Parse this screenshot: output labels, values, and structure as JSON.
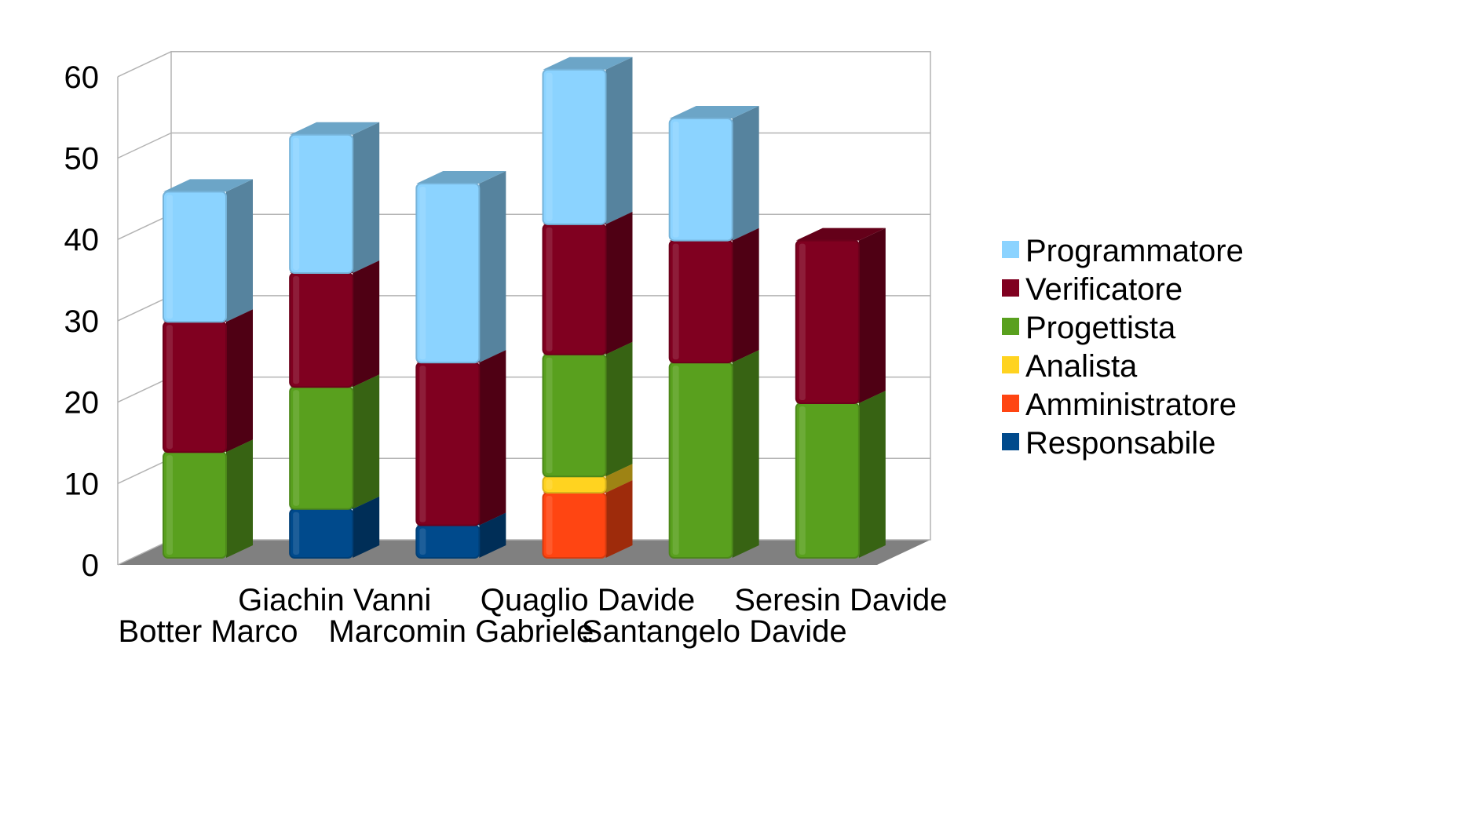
{
  "chart_data": {
    "type": "bar",
    "stacked": true,
    "three_d": true,
    "categories": [
      "Botter Marco",
      "Giachin Vanni",
      "Marcomin Gabriele",
      "Quaglio Davide",
      "Santangelo Davide",
      "Seresin Davide"
    ],
    "series": [
      {
        "name": "Responsabile",
        "color": "#004A8C",
        "values": [
          0,
          6,
          4,
          0,
          0,
          0
        ]
      },
      {
        "name": "Amministratore",
        "color": "#FF4512",
        "values": [
          0,
          0,
          0,
          8,
          0,
          0
        ]
      },
      {
        "name": "Analista",
        "color": "#FFD320",
        "values": [
          0,
          0,
          0,
          2,
          0,
          0
        ]
      },
      {
        "name": "Progettista",
        "color": "#59A01E",
        "values": [
          13,
          15,
          0,
          15,
          24,
          19
        ]
      },
      {
        "name": "Verificatore",
        "color": "#800020",
        "values": [
          16,
          14,
          20,
          16,
          15,
          20
        ]
      },
      {
        "name": "Programmatore",
        "color": "#8BD3FF",
        "values": [
          16,
          17,
          22,
          19,
          15,
          0
        ]
      }
    ],
    "legend_order": [
      "Programmatore",
      "Verificatore",
      "Progettista",
      "Analista",
      "Amministratore",
      "Responsabile"
    ],
    "y_ticks": [
      "0",
      "10",
      "20",
      "30",
      "40",
      "50",
      "60"
    ],
    "ylim": [
      0,
      60
    ],
    "grid": true,
    "legend_position": "right",
    "title": "",
    "xlabel": "",
    "ylabel": ""
  }
}
